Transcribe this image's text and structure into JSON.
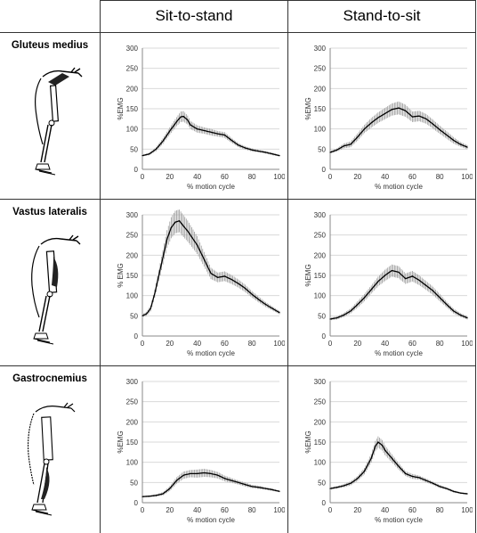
{
  "columns": [
    "Sit-to-stand",
    "Stand-to-sit"
  ],
  "rows": [
    "Gluteus medius",
    "Vastus lateralis",
    "Gastrocnemius"
  ],
  "colors": {
    "line": "#000000",
    "errorbar": "#9a9a9a",
    "grid": "#d9d9d9",
    "border": "#333333"
  },
  "chart_data": [
    {
      "type": "line",
      "row": "Gluteus medius",
      "column": "Sit-to-stand",
      "ylabel": "%EMG",
      "xlabel": "% motion cycle",
      "xlim": [
        0,
        100
      ],
      "ylim": [
        0,
        300
      ],
      "xticks": [
        0,
        20,
        40,
        60,
        80,
        100
      ],
      "yticks": [
        0,
        50,
        100,
        150,
        200,
        250,
        300
      ],
      "grid": true,
      "x": [
        0,
        5,
        10,
        15,
        20,
        25,
        28,
        30,
        33,
        35,
        40,
        45,
        50,
        55,
        60,
        65,
        70,
        75,
        80,
        85,
        90,
        95,
        100
      ],
      "y": [
        34,
        38,
        50,
        70,
        95,
        118,
        130,
        131,
        122,
        110,
        100,
        96,
        92,
        88,
        85,
        72,
        60,
        53,
        48,
        45,
        42,
        38,
        34
      ],
      "err": [
        2,
        3,
        5,
        7,
        9,
        11,
        13,
        13,
        11,
        10,
        9,
        8,
        8,
        7,
        7,
        6,
        5,
        4,
        4,
        3,
        3,
        3,
        2
      ]
    },
    {
      "type": "line",
      "row": "Gluteus medius",
      "column": "Stand-to-sit",
      "ylabel": "%EMG",
      "xlabel": "% motion cycle",
      "xlim": [
        0,
        100
      ],
      "ylim": [
        0,
        300
      ],
      "xticks": [
        0,
        20,
        40,
        60,
        80,
        100
      ],
      "yticks": [
        0,
        50,
        100,
        150,
        200,
        250,
        300
      ],
      "grid": true,
      "x": [
        0,
        5,
        10,
        15,
        20,
        25,
        30,
        35,
        40,
        45,
        50,
        55,
        60,
        65,
        70,
        75,
        80,
        85,
        90,
        95,
        100
      ],
      "y": [
        42,
        48,
        58,
        62,
        80,
        100,
        115,
        128,
        138,
        148,
        152,
        145,
        130,
        132,
        125,
        112,
        98,
        85,
        72,
        62,
        55
      ],
      "err": [
        3,
        4,
        6,
        7,
        9,
        10,
        12,
        13,
        14,
        15,
        16,
        15,
        13,
        13,
        12,
        11,
        10,
        9,
        8,
        6,
        5
      ]
    },
    {
      "type": "line",
      "row": "Vastus lateralis",
      "column": "Sit-to-stand",
      "ylabel": "% EMG",
      "xlabel": "% motion cycle",
      "xlim": [
        0,
        100
      ],
      "ylim": [
        0,
        300
      ],
      "xticks": [
        0,
        20,
        40,
        60,
        80,
        100
      ],
      "yticks": [
        0,
        50,
        100,
        150,
        200,
        250,
        300
      ],
      "grid": true,
      "x": [
        0,
        3,
        6,
        9,
        12,
        15,
        18,
        21,
        24,
        27,
        30,
        33,
        36,
        40,
        45,
        50,
        55,
        60,
        65,
        70,
        75,
        80,
        85,
        90,
        95,
        100
      ],
      "y": [
        50,
        55,
        68,
        105,
        150,
        195,
        240,
        268,
        282,
        285,
        272,
        260,
        245,
        225,
        190,
        155,
        145,
        148,
        140,
        130,
        118,
        103,
        90,
        78,
        68,
        58
      ],
      "err": [
        4,
        5,
        7,
        10,
        14,
        18,
        22,
        26,
        28,
        28,
        27,
        26,
        24,
        22,
        18,
        14,
        12,
        12,
        11,
        10,
        9,
        8,
        7,
        6,
        5,
        4
      ]
    },
    {
      "type": "line",
      "row": "Vastus lateralis",
      "column": "Stand-to-sit",
      "ylabel": "%EMG",
      "xlabel": "% motion cycle",
      "xlim": [
        0,
        100
      ],
      "ylim": [
        0,
        300
      ],
      "xticks": [
        0,
        20,
        40,
        60,
        80,
        100
      ],
      "yticks": [
        0,
        50,
        100,
        150,
        200,
        250,
        300
      ],
      "grid": true,
      "x": [
        0,
        5,
        10,
        15,
        20,
        25,
        30,
        35,
        40,
        45,
        50,
        55,
        60,
        65,
        70,
        75,
        80,
        85,
        90,
        95,
        100
      ],
      "y": [
        42,
        45,
        52,
        62,
        78,
        95,
        115,
        135,
        150,
        162,
        158,
        142,
        148,
        138,
        125,
        112,
        95,
        78,
        62,
        52,
        45
      ],
      "err": [
        3,
        4,
        5,
        6,
        8,
        9,
        10,
        12,
        14,
        15,
        15,
        13,
        13,
        12,
        11,
        10,
        9,
        7,
        6,
        5,
        4
      ]
    },
    {
      "type": "line",
      "row": "Gastrocnemius",
      "column": "Sit-to-stand",
      "ylabel": "%EMG",
      "xlabel": "% motion cycle",
      "xlim": [
        0,
        100
      ],
      "ylim": [
        0,
        300
      ],
      "xticks": [
        0,
        20,
        40,
        60,
        80,
        100
      ],
      "yticks": [
        0,
        50,
        100,
        150,
        200,
        250,
        300
      ],
      "grid": true,
      "x": [
        0,
        5,
        10,
        15,
        20,
        25,
        30,
        35,
        40,
        45,
        50,
        55,
        60,
        65,
        70,
        75,
        80,
        85,
        90,
        95,
        100
      ],
      "y": [
        15,
        16,
        18,
        22,
        35,
        55,
        68,
        72,
        72,
        74,
        72,
        68,
        60,
        55,
        50,
        45,
        40,
        38,
        35,
        32,
        28
      ],
      "err": [
        2,
        2,
        3,
        4,
        6,
        8,
        9,
        9,
        10,
        10,
        9,
        8,
        7,
        6,
        5,
        5,
        4,
        4,
        3,
        3,
        2
      ]
    },
    {
      "type": "line",
      "row": "Gastrocnemius",
      "column": "Stand-to-sit",
      "ylabel": "%EMG",
      "xlabel": "% motion cycle",
      "xlim": [
        0,
        100
      ],
      "ylim": [
        0,
        300
      ],
      "xticks": [
        0,
        20,
        40,
        60,
        80,
        100
      ],
      "yticks": [
        0,
        50,
        100,
        150,
        200,
        250,
        300
      ],
      "grid": true,
      "x": [
        0,
        5,
        10,
        15,
        20,
        25,
        30,
        33,
        35,
        38,
        40,
        45,
        50,
        55,
        60,
        65,
        70,
        75,
        80,
        85,
        90,
        95,
        100
      ],
      "y": [
        35,
        38,
        42,
        48,
        60,
        78,
        110,
        140,
        150,
        142,
        130,
        110,
        90,
        72,
        65,
        62,
        55,
        48,
        40,
        35,
        28,
        24,
        22
      ],
      "err": [
        3,
        3,
        4,
        5,
        6,
        8,
        11,
        13,
        14,
        13,
        12,
        10,
        8,
        6,
        6,
        5,
        5,
        4,
        4,
        3,
        3,
        2,
        2
      ]
    }
  ]
}
